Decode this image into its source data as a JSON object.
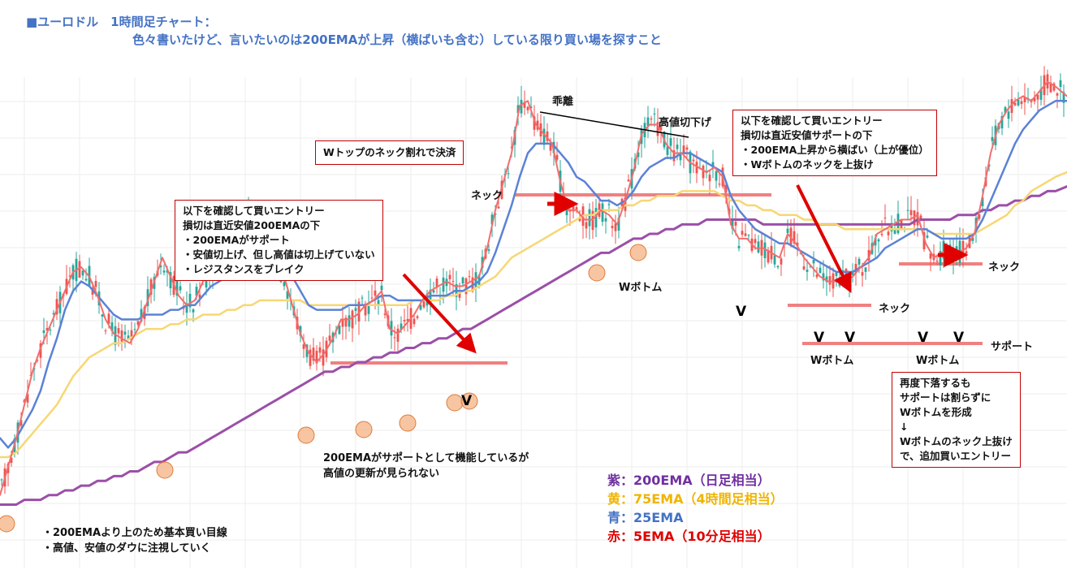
{
  "title": {
    "line1": "■ユーロドル　1時間足チャート：",
    "line2": "色々書いたけど、言いたいのは200EMAが上昇（横ばいも含む）している限り買い場を探すこと"
  },
  "boxes": {
    "entry1": {
      "lines": [
        "以下を確認して買いエントリー",
        "損切は直近安値200EMAの下",
        "・200EMAがサポート",
        "・安値切上げ、但し高値は切上げていない",
        "・レジスタンスをブレイク"
      ]
    },
    "wtop": {
      "lines": [
        "Wトップのネック割れで決済"
      ]
    },
    "entry2": {
      "lines": [
        "以下を確認して買いエントリー",
        "損切は直近安値サポートの下",
        "・200EMA上昇から横ばい（上が優位）",
        "・Wボトムのネックを上抜け"
      ]
    },
    "retest": {
      "lines": [
        "再度下落するも",
        "サポートは割らずに",
        "Wボトムを形成",
        "↓",
        "Wボトムのネック上抜け",
        "で、追加買いエントリー"
      ]
    }
  },
  "labels": {
    "kairi": "乖離",
    "lower_high": "高値切下げ",
    "neck1": "ネック",
    "neck2": "ネック",
    "neck3": "ネック",
    "wbottom1": "Wボトム",
    "wbottom2": "Wボトム",
    "wbottom3": "Wボトム",
    "support": "サポート",
    "v": "V"
  },
  "notes": {
    "mid": [
      "200EMAがサポートとして機能しているが",
      "高値の更新が見られない"
    ],
    "bottom": [
      "・200EMAより上のため基本買い目線",
      "・高値、安値のダウに注視していく"
    ]
  },
  "legend": [
    {
      "label": "紫：200EMA（日足相当）",
      "color": "#7030a0"
    },
    {
      "label": "黄：75EMA（4時間足相当）",
      "color": "#f0b400"
    },
    {
      "label": "青：25EMA",
      "color": "#4472c4"
    },
    {
      "label": "赤：5EMA（10分足相当）",
      "color": "#e00000"
    }
  ],
  "colors": {
    "up_candle": "#26a69a",
    "down_candle": "#ef5350",
    "ema200": "#9b4fa8",
    "ema75": "#f7d774",
    "ema25": "#5b82d6",
    "ema5": "#f06e6e",
    "level_line": "#f08080",
    "arrow": "#e00000",
    "touch_circle": "#f4b183"
  },
  "chart_data": {
    "type": "line",
    "xlabel": "",
    "ylabel": "",
    "ylim": [
      0,
      100
    ],
    "x": [
      0,
      10,
      20,
      30,
      40,
      50,
      60,
      70,
      80,
      90,
      100,
      110,
      120,
      130,
      140,
      150,
      160,
      170,
      180,
      190,
      200,
      210,
      220,
      230,
      240,
      250,
      260,
      270,
      280,
      290,
      300,
      310,
      320,
      330,
      340,
      350,
      360,
      370,
      380,
      390,
      400,
      410,
      420,
      430,
      440,
      450,
      460,
      470,
      480,
      490,
      500,
      510,
      520,
      530,
      540,
      550,
      560,
      570,
      580,
      590,
      600,
      610,
      620,
      630,
      640,
      650,
      660,
      670,
      680,
      690,
      700,
      710,
      720,
      730,
      740,
      750,
      760,
      770,
      780,
      790,
      800,
      810,
      820,
      830,
      840,
      850,
      860,
      870,
      880,
      890,
      900,
      910,
      920,
      930,
      940,
      950,
      960,
      970,
      980,
      990,
      1000,
      1010,
      1020,
      1030,
      1040,
      1050,
      1060,
      1070,
      1080,
      1090,
      1100,
      1110,
      1120,
      1130,
      1140,
      1150,
      1160,
      1170,
      1180,
      1190,
      1200,
      1210,
      1220,
      1230,
      1240,
      1250,
      1260,
      1270,
      1280,
      1290,
      1300,
      1314
    ],
    "series": [
      {
        "name": "5EMA",
        "values": [
          12,
          18,
          24,
          31,
          38,
          43,
          47,
          51,
          55,
          59,
          60,
          58,
          54,
          49,
          46,
          45,
          44,
          47,
          52,
          57,
          62,
          58,
          54,
          52,
          53,
          57,
          59,
          62,
          66,
          70,
          72,
          70,
          67,
          64,
          61,
          58,
          52,
          46,
          42,
          40,
          42,
          45,
          49,
          49,
          50,
          52,
          53,
          55,
          47,
          46,
          48,
          50,
          53,
          55,
          56,
          57,
          56,
          56,
          57,
          58,
          64,
          72,
          78,
          84,
          94,
          95,
          90,
          88,
          86,
          78,
          72,
          72,
          70,
          70,
          72,
          71,
          69,
          74,
          80,
          88,
          90,
          90,
          86,
          84,
          84,
          82,
          81,
          80,
          81,
          79,
          69,
          66,
          66,
          64,
          64,
          63,
          62,
          67,
          65,
          62,
          60,
          58,
          57,
          57,
          57,
          58,
          60,
          62,
          67,
          68,
          69,
          70,
          70,
          71,
          65,
          62,
          63,
          64,
          63,
          64,
          67,
          75,
          84,
          90,
          93,
          95,
          96,
          95,
          97,
          99,
          98,
          96
        ]
      },
      {
        "name": "25EMA",
        "values": [
          24,
          22,
          24,
          27,
          30,
          34,
          40,
          45,
          51,
          55,
          57,
          56,
          54,
          52,
          50,
          49,
          49,
          49,
          50,
          50,
          50,
          51,
          51,
          52,
          52,
          54,
          56,
          57,
          58,
          60,
          63,
          64,
          65,
          65,
          63,
          60,
          58,
          55,
          52,
          51,
          51,
          51,
          51,
          52,
          52,
          52,
          53,
          54,
          54,
          53,
          53,
          53,
          53,
          54,
          54,
          54,
          55,
          55,
          56,
          57,
          59,
          63,
          68,
          73,
          79,
          84,
          86,
          86,
          86,
          84,
          82,
          79,
          78,
          76,
          74,
          74,
          73,
          74,
          76,
          79,
          81,
          82,
          83,
          83,
          84,
          84,
          83,
          82,
          81,
          80,
          75,
          72,
          70,
          68,
          67,
          66,
          65,
          65,
          64,
          63,
          62,
          61,
          60,
          59,
          59,
          59,
          60,
          61,
          62,
          64,
          65,
          66,
          67,
          68,
          68,
          67,
          66,
          66,
          66,
          66,
          67,
          70,
          74,
          78,
          82,
          86,
          89,
          91,
          93,
          94,
          95,
          95
        ]
      },
      {
        "name": "75EMA",
        "values": [
          20,
          20,
          21,
          23,
          25,
          27,
          29,
          31,
          34,
          37,
          39,
          41,
          42,
          43,
          44,
          44,
          45,
          46,
          47,
          47,
          47,
          48,
          48,
          49,
          49,
          50,
          50,
          50,
          51,
          51,
          52,
          52,
          53,
          53,
          53,
          53,
          53,
          53,
          52,
          52,
          52,
          52,
          52,
          52,
          52,
          52,
          52,
          52,
          52,
          52,
          52,
          53,
          53,
          53,
          53,
          54,
          54,
          55,
          55,
          56,
          57,
          58,
          60,
          62,
          63,
          64,
          65,
          66,
          67,
          68,
          69,
          70,
          71,
          71,
          72,
          72,
          72,
          73,
          73,
          74,
          74,
          75,
          75,
          75,
          76,
          76,
          76,
          76,
          76,
          75,
          74,
          74,
          73,
          73,
          72,
          72,
          71,
          71,
          71,
          70,
          70,
          69,
          69,
          69,
          68,
          68,
          68,
          68,
          68,
          68,
          68,
          68,
          68,
          68,
          68,
          67,
          67,
          67,
          67,
          67,
          67,
          68,
          69,
          70,
          71,
          73,
          74,
          76,
          77,
          78,
          79,
          80
        ]
      },
      {
        "name": "200EMA",
        "values": [
          10,
          10,
          10,
          11,
          11,
          11,
          12,
          12,
          13,
          13,
          14,
          14,
          15,
          15,
          16,
          16,
          17,
          17,
          18,
          19,
          19,
          20,
          21,
          21,
          22,
          23,
          24,
          25,
          26,
          27,
          28,
          29,
          30,
          31,
          32,
          33,
          34,
          35,
          36,
          37,
          38,
          38,
          39,
          39,
          40,
          40,
          41,
          41,
          42,
          42,
          43,
          43,
          44,
          44,
          45,
          45,
          46,
          47,
          47,
          48,
          49,
          50,
          51,
          52,
          53,
          54,
          55,
          56,
          57,
          58,
          59,
          60,
          61,
          62,
          63,
          63,
          64,
          65,
          66,
          66,
          67,
          67,
          68,
          68,
          69,
          69,
          69,
          70,
          70,
          70,
          70,
          70,
          70,
          70,
          69,
          69,
          69,
          69,
          69,
          69,
          69,
          69,
          69,
          69,
          69,
          69,
          69,
          69,
          69,
          69,
          69,
          69,
          69,
          70,
          70,
          70,
          70,
          70,
          71,
          71,
          71,
          72,
          72,
          73,
          73,
          74,
          74,
          75,
          75,
          76,
          76,
          77
        ]
      }
    ]
  }
}
